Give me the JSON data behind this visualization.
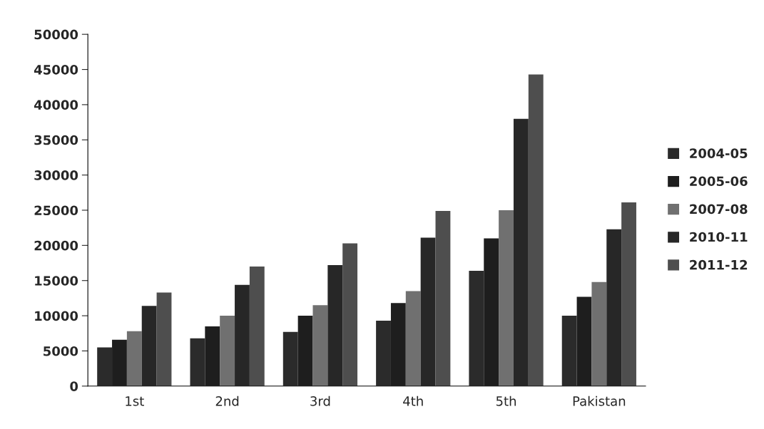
{
  "chart_data": {
    "type": "bar",
    "categories": [
      "1st",
      "2nd",
      "3rd",
      "4th",
      "5th",
      "Pakistan"
    ],
    "series": [
      {
        "name": "2004-05",
        "color": "#2b2b2b",
        "values": [
          5500,
          6800,
          7700,
          9300,
          16400,
          10000
        ]
      },
      {
        "name": "2005-06",
        "color": "#1e1e1e",
        "values": [
          6600,
          8500,
          10000,
          11800,
          21000,
          12700
        ]
      },
      {
        "name": "2007-08",
        "color": "#707070",
        "values": [
          7800,
          10000,
          11500,
          13500,
          25000,
          14800
        ]
      },
      {
        "name": "2010-11",
        "color": "#272727",
        "values": [
          11400,
          14400,
          17200,
          21100,
          38000,
          22300
        ]
      },
      {
        "name": "2011-12",
        "color": "#4e4e4e",
        "values": [
          13300,
          17000,
          20300,
          24900,
          44300,
          26100
        ]
      }
    ],
    "ylim": [
      0,
      50000
    ],
    "yticks": [
      0,
      5000,
      10000,
      15000,
      20000,
      25000,
      30000,
      35000,
      40000,
      45000,
      50000
    ],
    "grid": false,
    "legend": "right"
  }
}
